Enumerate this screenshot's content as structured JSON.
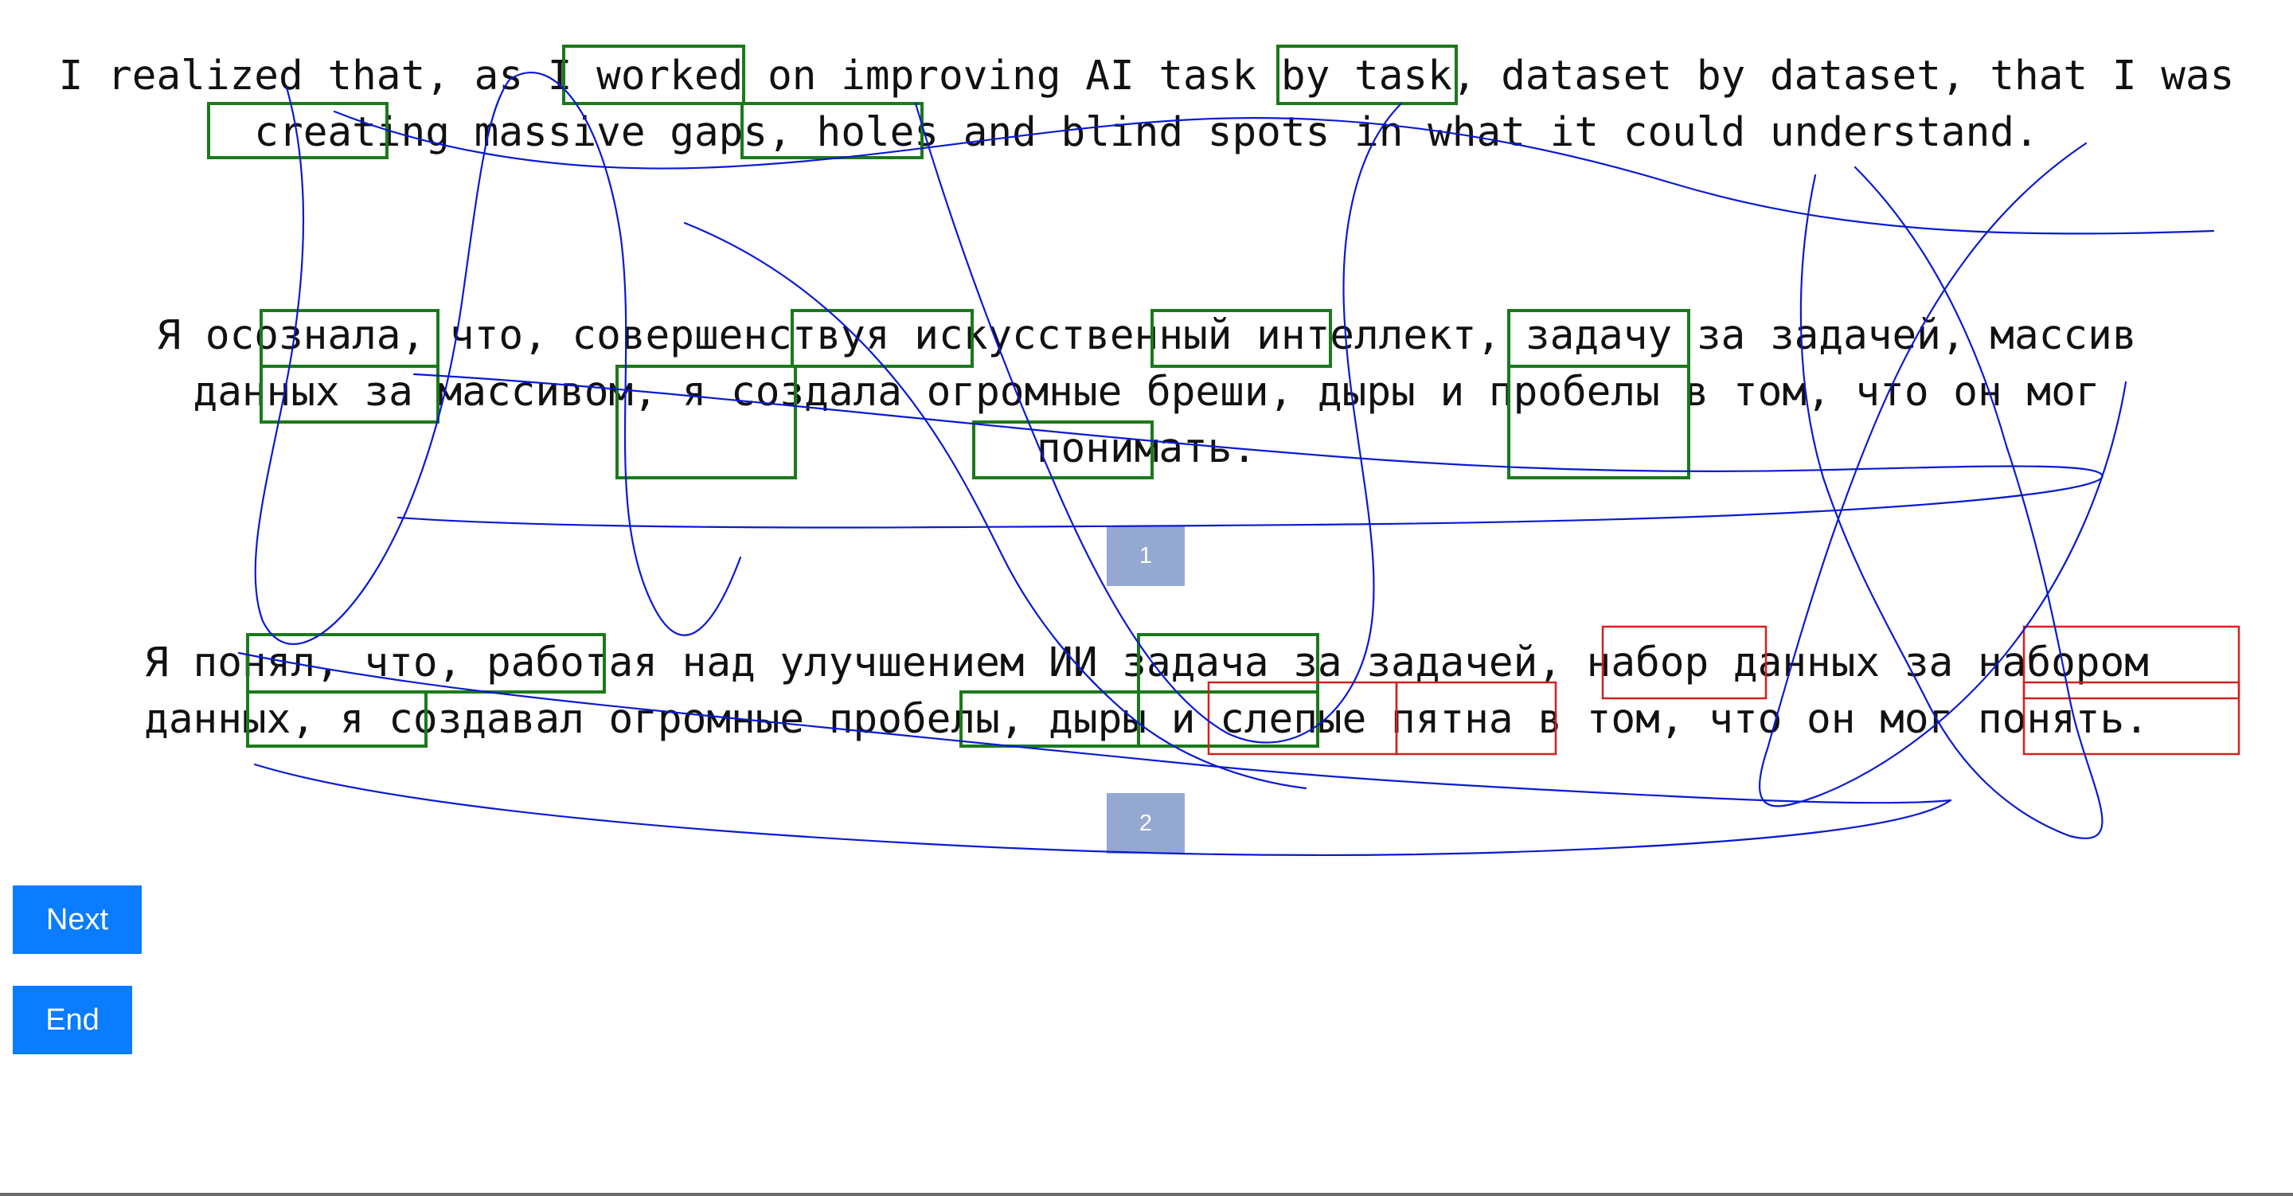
{
  "sentences": {
    "source": "I realized that, as I worked on improving AI task by task, dataset by dataset, that I was creating massive gaps, holes and blind spots in what it could understand.",
    "reference": "Я осознала, что, совершенствуя искусственный интеллект, задачу за задачей, массив данных за массивом, я создала огромные бреши, дыры и пробелы в том, что он мог понимать.",
    "hypothesis": "Я понял, что, работая над улучшением ИИ задача за задачей, набор данных за набором данных, я создавал огромные пробелы, дыры и слепые пятна в том, что он мог понять."
  },
  "markers": {
    "first": "1",
    "second": "2"
  },
  "buttons": {
    "next": "Next",
    "end": "End"
  },
  "colors": {
    "match_box": "#1a7a1a",
    "mismatch_box": "#d42020",
    "gaze_trace": "#0a1ad0",
    "marker_bg": "#94a8d2",
    "button_bg": "#0a7cff"
  }
}
